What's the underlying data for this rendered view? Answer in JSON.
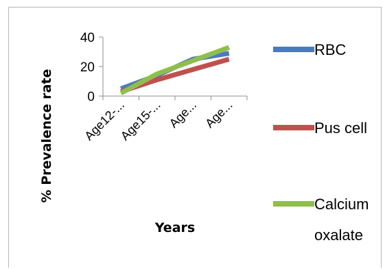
{
  "chart_data": {
    "type": "line",
    "title": "",
    "xlabel": "Years",
    "ylabel": "% Prevalence rate",
    "ylim": [
      0,
      40
    ],
    "yticks": [
      0,
      20,
      40
    ],
    "grid": false,
    "legend_position": "right",
    "categories": [
      "Age12-...",
      "Age15-...",
      "Age...",
      "Age..."
    ],
    "series": [
      {
        "name": "RBC",
        "values": [
          5,
          14,
          25,
          29
        ],
        "color": "#4a7bbf"
      },
      {
        "name": "Pus cell",
        "values": [
          3,
          11,
          18,
          25
        ],
        "color": "#c0504d"
      },
      {
        "name": "Calcium oxalate",
        "name_lines": [
          "Calcium",
          "oxalate"
        ],
        "values": [
          2,
          15,
          24,
          33
        ],
        "color": "#8fbe4b"
      }
    ]
  }
}
